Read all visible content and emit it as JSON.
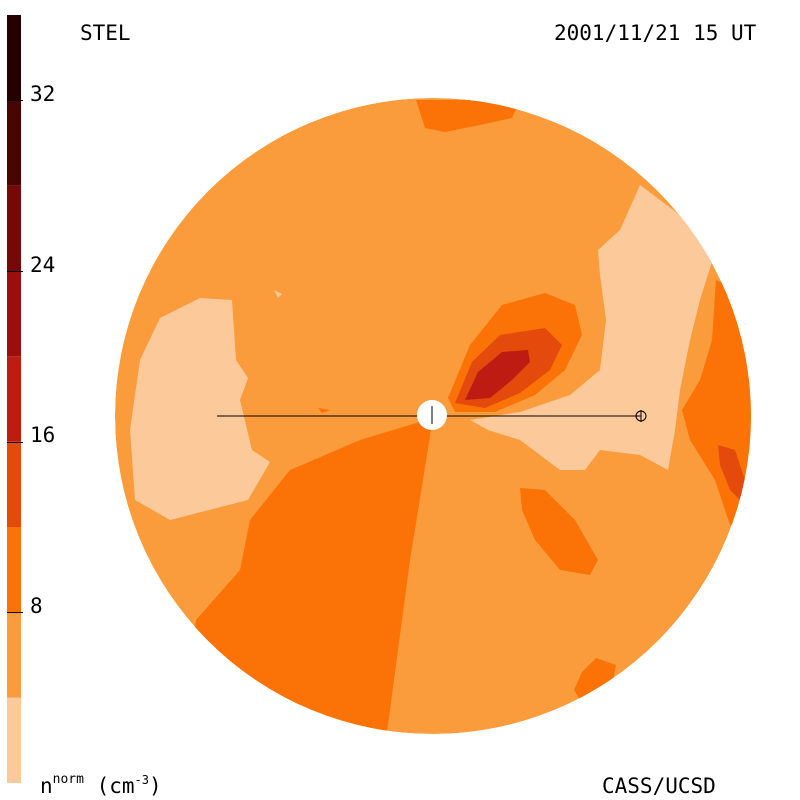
{
  "header": {
    "instrument": "STEL",
    "timestamp": "2001/11/21 15 UT"
  },
  "footer": {
    "credit": "CASS/UCSD"
  },
  "colorbar": {
    "unit_base": "n",
    "unit_sup": "norm",
    "unit_open": " (cm",
    "unit_exp": "-3",
    "unit_close": ")",
    "tick_labels": [
      "32",
      "24",
      "16",
      "8"
    ],
    "tick_values": [
      32,
      24,
      16,
      8
    ],
    "range": [
      0,
      36
    ],
    "bands": [
      {
        "from": 0,
        "to": 4,
        "color": "#fcc99b"
      },
      {
        "from": 4,
        "to": 8,
        "color": "#fa9c3c"
      },
      {
        "from": 8,
        "to": 12,
        "color": "#fb7306"
      },
      {
        "from": 12,
        "to": 16,
        "color": "#e44a0c"
      },
      {
        "from": 16,
        "to": 20,
        "color": "#be1c12"
      },
      {
        "from": 20,
        "to": 24,
        "color": "#9d0d0e"
      },
      {
        "from": 24,
        "to": 28,
        "color": "#760808"
      },
      {
        "from": 28,
        "to": 32,
        "color": "#4a0404"
      },
      {
        "from": 32,
        "to": 36,
        "color": "#260000"
      }
    ]
  },
  "map": {
    "background_color": "#fa9c3c",
    "sun_color": "#ffffff",
    "sightline_color": "#000000"
  }
}
